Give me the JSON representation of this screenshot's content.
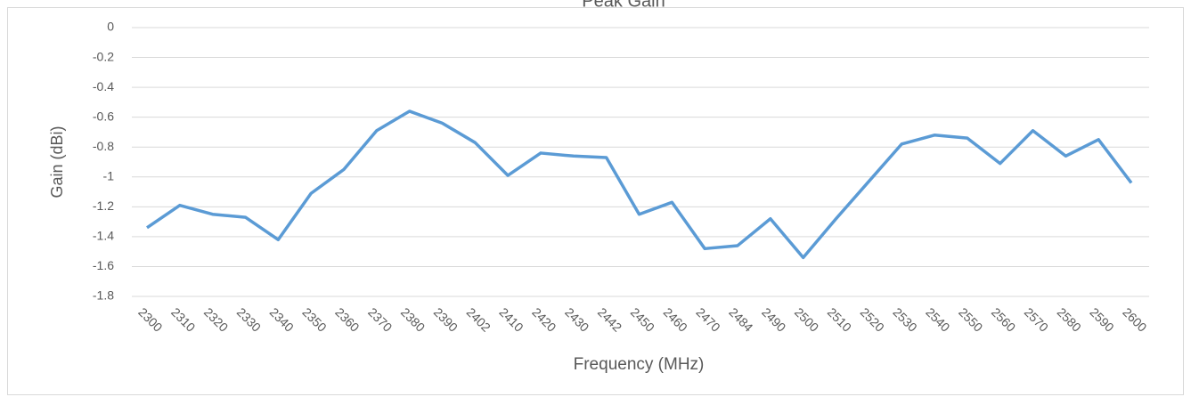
{
  "chart_data": {
    "type": "line",
    "title": "Peak Gain",
    "xlabel": "Frequency  (MHz)",
    "ylabel": "Gain (dBi)",
    "categories": [
      "2300",
      "2310",
      "2320",
      "2330",
      "2340",
      "2350",
      "2360",
      "2370",
      "2380",
      "2390",
      "2402",
      "2410",
      "2420",
      "2430",
      "2442",
      "2450",
      "2460",
      "2470",
      "2484",
      "2490",
      "2500",
      "2510",
      "2520",
      "2530",
      "2540",
      "2550",
      "2560",
      "2570",
      "2580",
      "2590",
      "2600"
    ],
    "values": [
      -1.34,
      -1.19,
      -1.25,
      -1.27,
      -1.42,
      -1.11,
      -0.95,
      -0.69,
      -0.56,
      -0.64,
      -0.77,
      -0.99,
      -0.84,
      -0.86,
      -0.87,
      -1.25,
      -1.17,
      -1.48,
      -1.46,
      -1.28,
      -1.54,
      -1.28,
      -1.03,
      -0.78,
      -0.72,
      -0.74,
      -0.91,
      -0.69,
      -0.86,
      -0.75,
      -1.04
    ],
    "color": "#5b9bd5",
    "ylim": [
      -1.8,
      0
    ],
    "yticks": [
      0,
      -0.2,
      -0.4,
      -0.6,
      -0.8,
      -1,
      -1.2,
      -1.4,
      -1.6,
      -1.8
    ],
    "grid": true
  }
}
